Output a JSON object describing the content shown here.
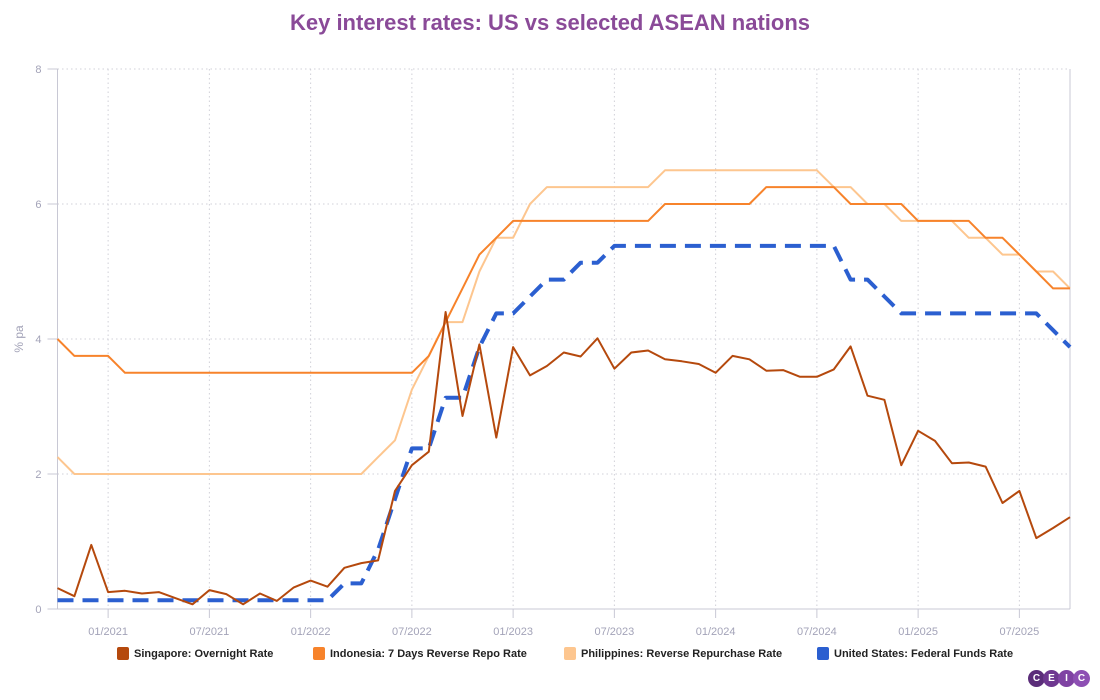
{
  "chart_data": {
    "type": "line",
    "title": "Key interest rates: US vs selected ASEAN nations",
    "ylabel": "% pa",
    "xlabel": "",
    "ylim": [
      0,
      8
    ],
    "yticks": [
      "0",
      "2",
      "4",
      "6",
      "8"
    ],
    "xticks": [
      "01/2021",
      "07/2021",
      "01/2022",
      "07/2022",
      "01/2023",
      "07/2023",
      "01/2024",
      "07/2024",
      "01/2025",
      "07/2025"
    ],
    "xtick_dates": [
      "2021-01",
      "2021-07",
      "2022-01",
      "2022-07",
      "2023-01",
      "2023-07",
      "2024-01",
      "2024-07",
      "2025-01",
      "2025-07"
    ],
    "xlim": [
      "2020-10",
      "2025-10"
    ],
    "grid": true,
    "legend_position": "bottom",
    "x": [
      "2020-10",
      "2020-11",
      "2020-12",
      "2021-01",
      "2021-02",
      "2021-03",
      "2021-04",
      "2021-05",
      "2021-06",
      "2021-07",
      "2021-08",
      "2021-09",
      "2021-10",
      "2021-11",
      "2021-12",
      "2022-01",
      "2022-02",
      "2022-03",
      "2022-04",
      "2022-05",
      "2022-06",
      "2022-07",
      "2022-08",
      "2022-09",
      "2022-10",
      "2022-11",
      "2022-12",
      "2023-01",
      "2023-02",
      "2023-03",
      "2023-04",
      "2023-05",
      "2023-06",
      "2023-07",
      "2023-08",
      "2023-09",
      "2023-10",
      "2023-11",
      "2023-12",
      "2024-01",
      "2024-02",
      "2024-03",
      "2024-04",
      "2024-05",
      "2024-06",
      "2024-07",
      "2024-08",
      "2024-09",
      "2024-10",
      "2024-11",
      "2024-12",
      "2025-01",
      "2025-02",
      "2025-03",
      "2025-04",
      "2025-05",
      "2025-06",
      "2025-07",
      "2025-08",
      "2025-09",
      "2025-10"
    ],
    "series": [
      {
        "name": "Singapore: Overnight Rate",
        "color": "#b5490d",
        "dashed": false,
        "values": [
          0.31,
          0.19,
          0.95,
          0.25,
          0.27,
          0.23,
          0.25,
          0.16,
          0.07,
          0.28,
          0.22,
          0.07,
          0.23,
          0.12,
          0.32,
          0.42,
          0.33,
          0.61,
          0.68,
          0.72,
          1.75,
          2.13,
          2.33,
          4.4,
          2.86,
          3.92,
          2.54,
          3.88,
          3.46,
          3.6,
          3.8,
          3.74,
          4.01,
          3.56,
          3.8,
          3.83,
          3.7,
          3.67,
          3.63,
          3.5,
          3.75,
          3.7,
          3.53,
          3.54,
          3.44,
          3.44,
          3.55,
          3.89,
          3.16,
          3.1,
          2.13,
          2.64,
          2.49,
          2.16,
          2.17,
          2.11,
          1.57,
          1.75,
          1.05,
          1.2,
          1.36
        ]
      },
      {
        "name": "Indonesia: 7 Days Reverse Repo Rate",
        "color": "#f7832b",
        "dashed": false,
        "values": [
          4.0,
          3.75,
          3.75,
          3.75,
          3.5,
          3.5,
          3.5,
          3.5,
          3.5,
          3.5,
          3.5,
          3.5,
          3.5,
          3.5,
          3.5,
          3.5,
          3.5,
          3.5,
          3.5,
          3.5,
          3.5,
          3.5,
          3.75,
          4.25,
          4.75,
          5.25,
          5.5,
          5.75,
          5.75,
          5.75,
          5.75,
          5.75,
          5.75,
          5.75,
          5.75,
          5.75,
          6.0,
          6.0,
          6.0,
          6.0,
          6.0,
          6.0,
          6.25,
          6.25,
          6.25,
          6.25,
          6.25,
          6.0,
          6.0,
          6.0,
          6.0,
          5.75,
          5.75,
          5.75,
          5.75,
          5.5,
          5.5,
          5.25,
          5.0,
          4.75,
          4.75
        ]
      },
      {
        "name": "Philippines: Reverse Repurchase Rate",
        "color": "#fdc68f",
        "dashed": false,
        "values": [
          2.25,
          2.0,
          2.0,
          2.0,
          2.0,
          2.0,
          2.0,
          2.0,
          2.0,
          2.0,
          2.0,
          2.0,
          2.0,
          2.0,
          2.0,
          2.0,
          2.0,
          2.0,
          2.0,
          2.25,
          2.5,
          3.25,
          3.75,
          4.25,
          4.25,
          5.0,
          5.5,
          5.5,
          6.0,
          6.25,
          6.25,
          6.25,
          6.25,
          6.25,
          6.25,
          6.25,
          6.5,
          6.5,
          6.5,
          6.5,
          6.5,
          6.5,
          6.5,
          6.5,
          6.5,
          6.5,
          6.25,
          6.25,
          6.0,
          6.0,
          5.75,
          5.75,
          5.75,
          5.75,
          5.5,
          5.5,
          5.25,
          5.25,
          5.0,
          5.0,
          4.75
        ]
      },
      {
        "name": "United States: Federal Funds Rate",
        "color": "#2b5fd0",
        "dashed": true,
        "values": [
          0.13,
          0.13,
          0.13,
          0.13,
          0.13,
          0.13,
          0.13,
          0.13,
          0.13,
          0.13,
          0.13,
          0.13,
          0.13,
          0.13,
          0.13,
          0.13,
          0.13,
          0.38,
          0.38,
          0.88,
          1.63,
          2.38,
          2.38,
          3.13,
          3.13,
          3.88,
          4.38,
          4.38,
          4.63,
          4.88,
          4.88,
          5.13,
          5.13,
          5.38,
          5.38,
          5.38,
          5.38,
          5.38,
          5.38,
          5.38,
          5.38,
          5.38,
          5.38,
          5.38,
          5.38,
          5.38,
          5.38,
          4.88,
          4.88,
          4.63,
          4.38,
          4.38,
          4.38,
          4.38,
          4.38,
          4.38,
          4.38,
          4.38,
          4.38,
          4.13,
          3.88
        ]
      }
    ]
  },
  "colors": {
    "title": "#8a4a98",
    "axis_text": "#a3a3b8",
    "axis_line": "#c8c8d4",
    "grid": "#d0d0d8",
    "logo": "#7b3f98"
  },
  "logo": {
    "letters": [
      "C",
      "E",
      "I",
      "C"
    ]
  }
}
